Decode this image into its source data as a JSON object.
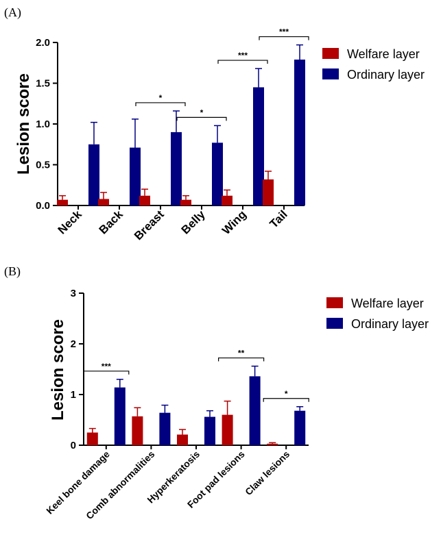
{
  "colors": {
    "welfare": "#b30000",
    "ordinary": "#000080"
  },
  "chart_data": [
    {
      "type": "bar",
      "panel_label": "(A)",
      "ylabel": "Lesion score",
      "ylim": [
        0,
        2.0
      ],
      "yticks": [
        "0.0",
        "0.5",
        "1.0",
        "1.5",
        "2.0"
      ],
      "categories": [
        "Neck",
        "Back",
        "Breast",
        "Belly",
        "Wing",
        "Tail"
      ],
      "series": [
        {
          "name": "Welfare layer",
          "values": [
            0.07,
            0.08,
            0.12,
            0.07,
            0.12,
            0.32
          ],
          "errors": [
            0.05,
            0.08,
            0.08,
            0.05,
            0.07,
            0.1
          ]
        },
        {
          "name": "Ordinary layer",
          "values": [
            0.75,
            0.71,
            0.9,
            0.77,
            1.45,
            1.79
          ],
          "errors": [
            0.27,
            0.35,
            0.26,
            0.21,
            0.23,
            0.18
          ]
        }
      ],
      "significance": [
        {
          "category": "Breast",
          "label": "*"
        },
        {
          "category": "Belly",
          "label": "*"
        },
        {
          "category": "Wing",
          "label": "***"
        },
        {
          "category": "Tail",
          "label": "***"
        }
      ],
      "legend_position": "top-right"
    },
    {
      "type": "bar",
      "panel_label": "(B)",
      "ylabel": "Lesion score",
      "ylim": [
        0,
        3
      ],
      "yticks": [
        "0",
        "1",
        "2",
        "3"
      ],
      "categories": [
        "Keel bone damage",
        "Comb abnormalities",
        "Hyperkeratosis",
        "Foot pad lesions",
        "Claw lesions"
      ],
      "series": [
        {
          "name": "Welfare layer",
          "values": [
            0.25,
            0.57,
            0.21,
            0.6,
            0.03
          ],
          "errors": [
            0.08,
            0.17,
            0.1,
            0.27,
            0.02
          ]
        },
        {
          "name": "Ordinary layer",
          "values": [
            1.14,
            0.64,
            0.56,
            1.36,
            0.68
          ],
          "errors": [
            0.16,
            0.15,
            0.12,
            0.2,
            0.08
          ]
        }
      ],
      "significance": [
        {
          "category": "Keel bone damage",
          "label": "***"
        },
        {
          "category": "Foot pad lesions",
          "label": "**"
        },
        {
          "category": "Claw lesions",
          "label": "*"
        }
      ],
      "legend_position": "top-right"
    }
  ]
}
